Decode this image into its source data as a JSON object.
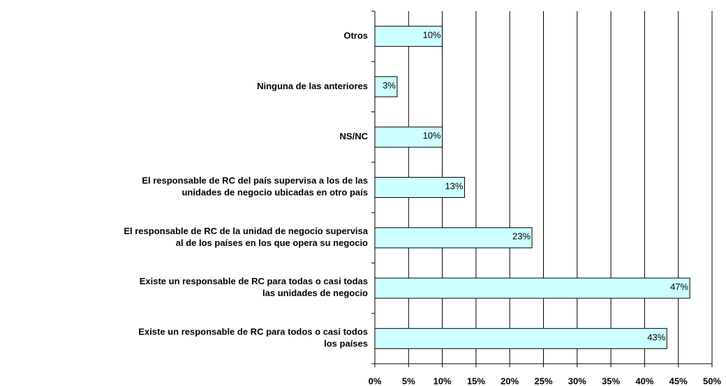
{
  "chart_data": {
    "type": "hbar",
    "categories": [
      "Otros",
      "Ninguna de las anteriores",
      "NS/NC",
      "El responsable de RC del país supervisa a los de las\nunidades de negocio ubicadas en otro país",
      "El responsable de RC de la unidad de negocio supervisa\nal de los países en los que opera su negocio",
      "Existe un responsable de RC para todas o casi todas\nlas unidades de negocio",
      "Existe un responsable de RC para todos o casi todos\nlos países"
    ],
    "values": [
      10,
      3.3,
      10,
      13.3,
      23.3,
      46.7,
      43.3
    ],
    "value_labels": [
      "10%",
      "3%",
      "10%",
      "13%",
      "23%",
      "47%",
      "43%"
    ],
    "color": "#ccffff",
    "xlim": [
      0,
      50
    ],
    "xticks": [
      {
        "value": 0,
        "label": "0%"
      },
      {
        "value": 5,
        "label": "5%"
      },
      {
        "value": 10,
        "label": "10%"
      },
      {
        "value": 15,
        "label": "15%"
      },
      {
        "value": 20,
        "label": "20%"
      },
      {
        "value": 25,
        "label": "25%"
      },
      {
        "value": 30,
        "label": "30%"
      },
      {
        "value": 35,
        "label": "35%"
      },
      {
        "value": 40,
        "label": "40%"
      },
      {
        "value": 45,
        "label": "45%"
      },
      {
        "value": 50,
        "label": "50%"
      }
    ],
    "grid": true
  }
}
